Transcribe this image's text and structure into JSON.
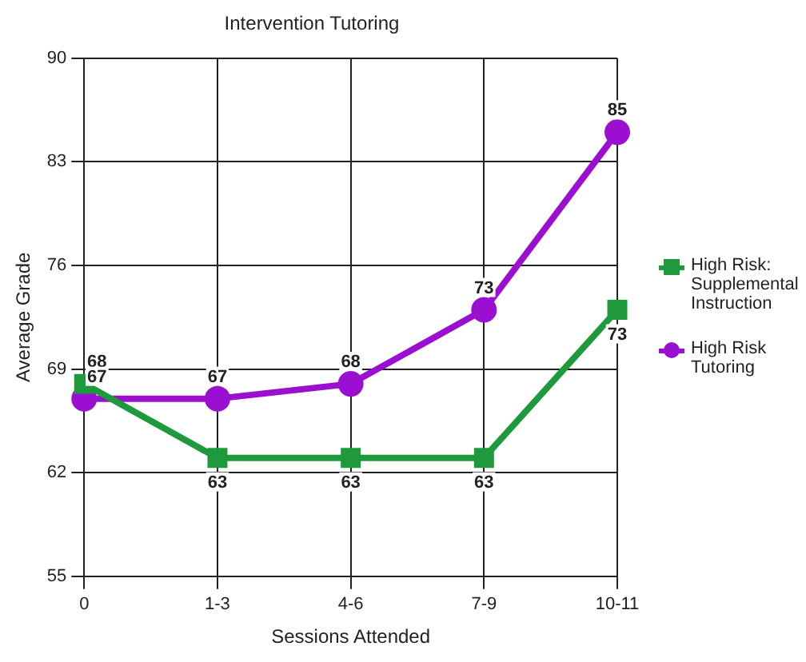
{
  "chart_data": {
    "type": "line",
    "title": "Intervention Tutoring",
    "xlabel": "Sessions Attended",
    "ylabel": "Average Grade",
    "categories": [
      "0",
      "1-3",
      "4-6",
      "7-9",
      "10-11"
    ],
    "series": [
      {
        "name": "High Risk: Supplemental Instruction",
        "color": "#1e9a3c",
        "marker": "square",
        "values": [
          68,
          63,
          63,
          63,
          73
        ]
      },
      {
        "name": "High Risk Tutoring",
        "color": "#9b0fd0",
        "marker": "circle",
        "values": [
          67,
          67,
          68,
          73,
          85
        ]
      }
    ],
    "ylim": [
      55,
      90
    ],
    "yticks": [
      55,
      62,
      69,
      76,
      83,
      90
    ],
    "grid": true,
    "legend": "right",
    "data_labels": true,
    "line_style": "solid"
  }
}
